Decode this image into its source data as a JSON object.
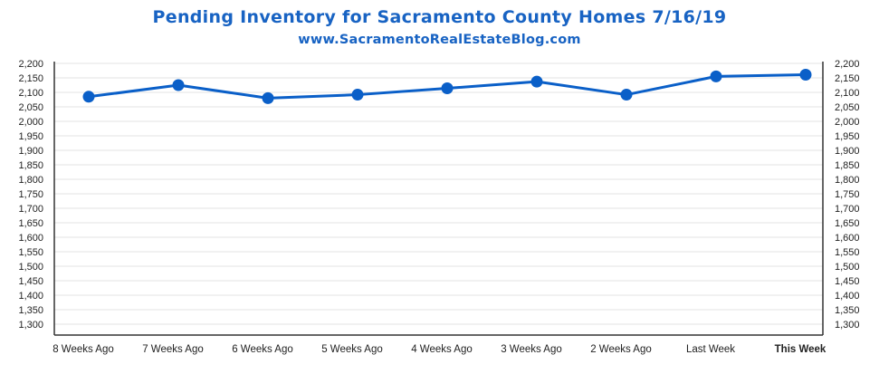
{
  "header": {
    "title": "Pending Inventory for Sacramento County Homes 7/16/19",
    "subtitle": "www.SacramentoRealEstateBlog.com"
  },
  "colors": {
    "accent": "#0a5fc8",
    "title": "#1863c3",
    "grid": "#e3e3e3",
    "axis": "#333333",
    "highlight_label": "#1863c3"
  },
  "chart_data": {
    "type": "line",
    "title": "Pending Inventory for Sacramento County Homes 7/16/19",
    "subtitle": "www.SacramentoRealEstateBlog.com",
    "categories": [
      "8 Weeks Ago",
      "7 Weeks Ago",
      "6 Weeks Ago",
      "5 Weeks Ago",
      "4 Weeks Ago",
      "3 Weeks Ago",
      "2 Weeks Ago",
      "Last Week",
      "This Week"
    ],
    "highlighted_category": "This Week",
    "series": [
      {
        "values": [
          2085,
          2125,
          2080,
          2092,
          2114,
          2137,
          2092,
          2155,
          2161
        ]
      }
    ],
    "ylim": [
      1300,
      2200
    ],
    "ytick_step": 50,
    "ytick_labels": [
      "1,300",
      "1,350",
      "1,400",
      "1,450",
      "1,500",
      "1,550",
      "1,600",
      "1,650",
      "1,700",
      "1,750",
      "1,800",
      "1,850",
      "1,900",
      "1,950",
      "2,000",
      "2,050",
      "2,100",
      "2,150",
      "2,200"
    ],
    "y_axis_sides": "left and right",
    "grid": true,
    "xlabel": "",
    "ylabel": ""
  }
}
